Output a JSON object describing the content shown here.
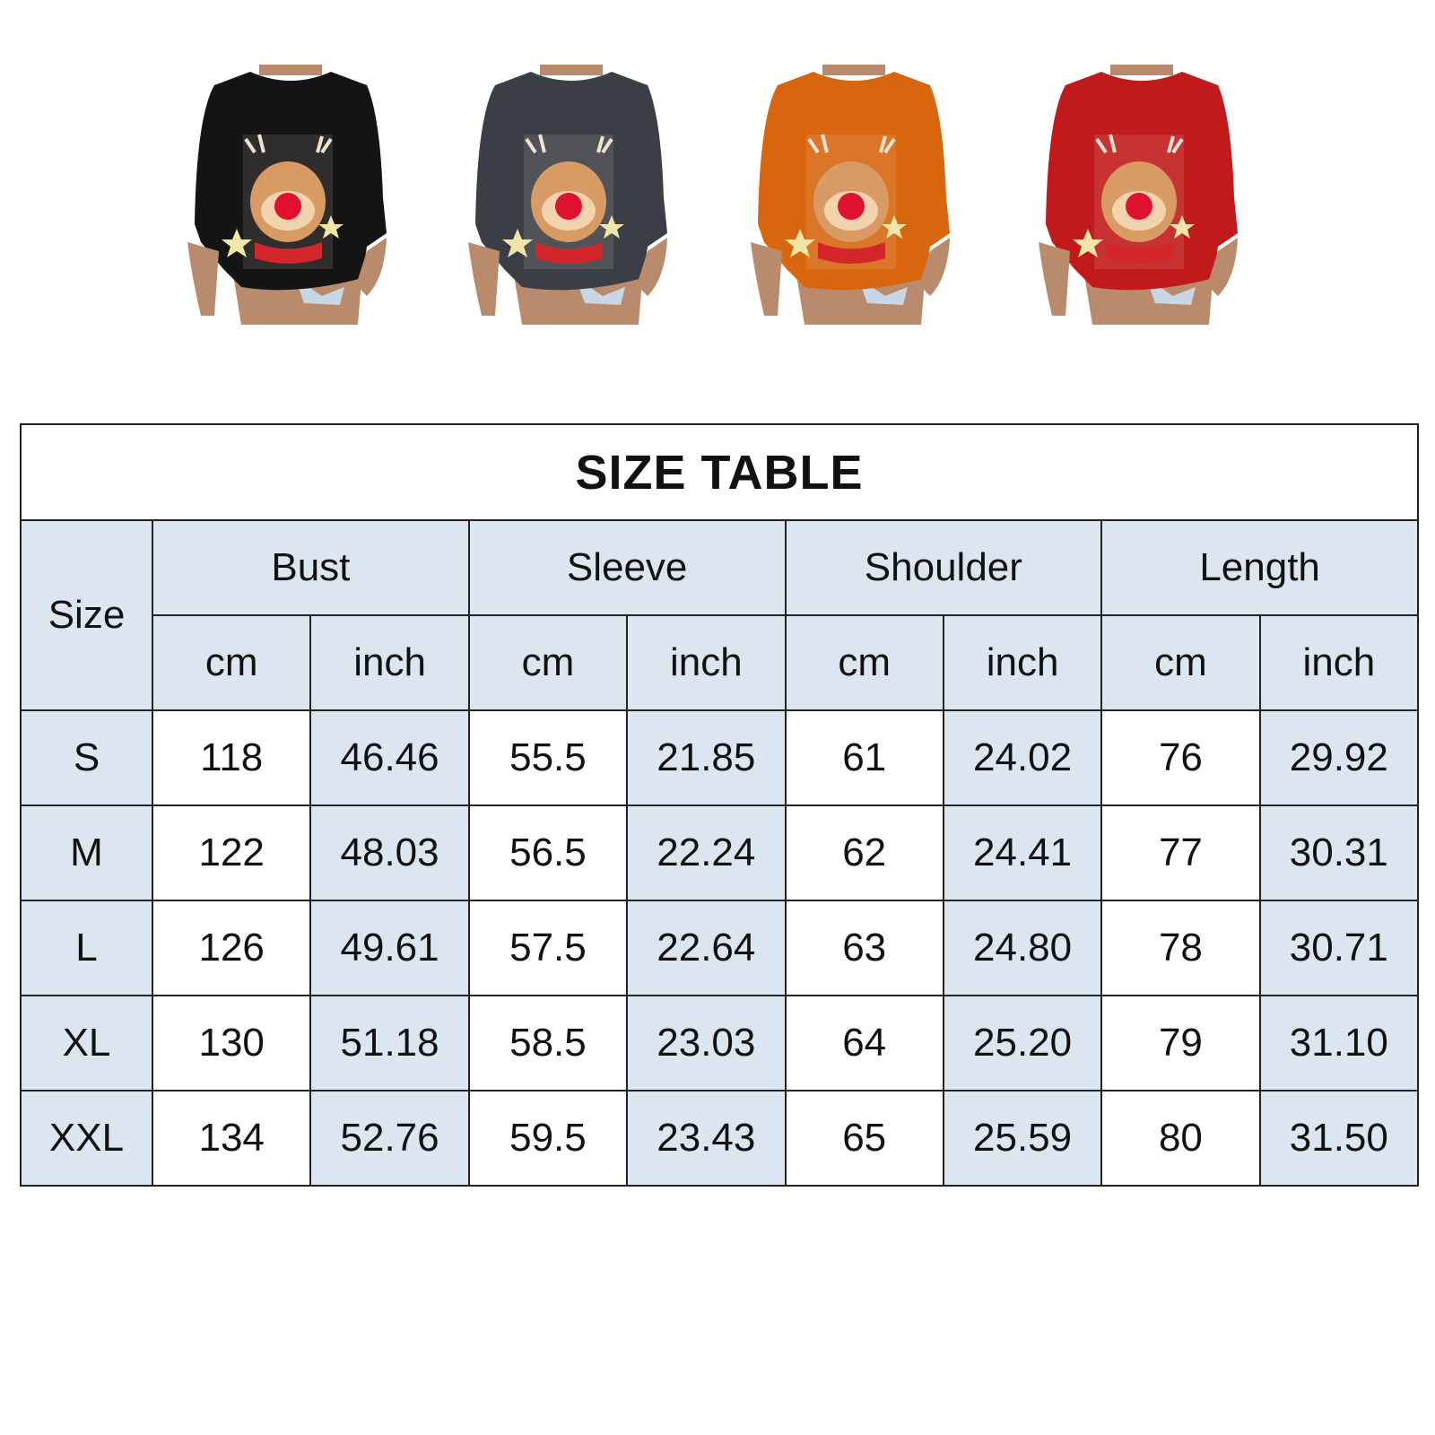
{
  "products": [
    {
      "color_name": "black",
      "color": "#141414"
    },
    {
      "color_name": "dark-gray",
      "color": "#3b3e45"
    },
    {
      "color_name": "orange",
      "color": "#d8660f"
    },
    {
      "color_name": "red",
      "color": "#c01a1a"
    }
  ],
  "size_table": {
    "title": "SIZE TABLE",
    "size_header": "Size",
    "measurements": [
      "Bust",
      "Sleeve",
      "Shoulder",
      "Length"
    ],
    "units": [
      "cm",
      "inch"
    ],
    "header_color": "#dce6f1",
    "rows": [
      {
        "size": "S",
        "values": [
          "118",
          "46.46",
          "55.5",
          "21.85",
          "61",
          "24.02",
          "76",
          "29.92"
        ]
      },
      {
        "size": "M",
        "values": [
          "122",
          "48.03",
          "56.5",
          "22.24",
          "62",
          "24.41",
          "77",
          "30.31"
        ]
      },
      {
        "size": "L",
        "values": [
          "126",
          "49.61",
          "57.5",
          "22.64",
          "63",
          "24.80",
          "78",
          "30.71"
        ]
      },
      {
        "size": "XL",
        "values": [
          "130",
          "51.18",
          "58.5",
          "23.03",
          "64",
          "25.20",
          "79",
          "31.10"
        ]
      },
      {
        "size": "XXL",
        "values": [
          "134",
          "52.76",
          "59.5",
          "23.43",
          "65",
          "25.59",
          "80",
          "31.50"
        ]
      }
    ]
  }
}
